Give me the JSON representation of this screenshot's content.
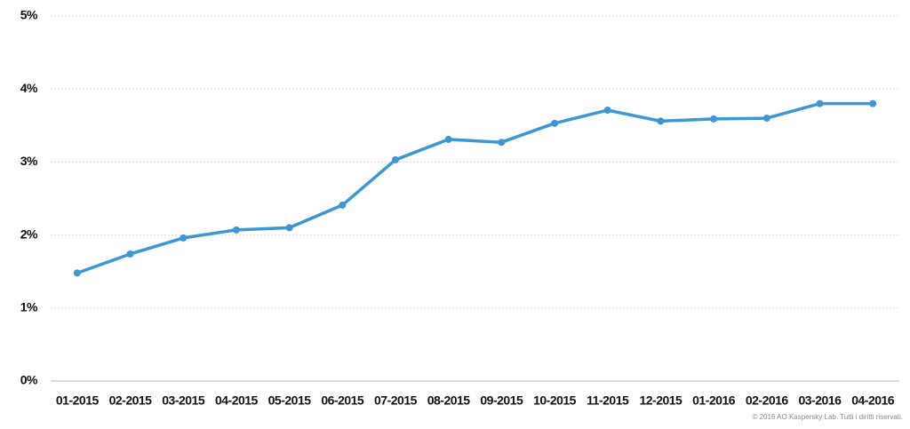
{
  "chart_data": {
    "type": "line",
    "categories": [
      "01-2015",
      "02-2015",
      "03-2015",
      "04-2015",
      "05-2015",
      "06-2015",
      "07-2015",
      "08-2015",
      "09-2015",
      "10-2015",
      "11-2015",
      "12-2015",
      "01-2016",
      "02-2016",
      "03-2016",
      "04-2016"
    ],
    "values": [
      1.48,
      1.74,
      1.96,
      2.07,
      2.1,
      2.41,
      3.03,
      3.31,
      3.27,
      3.53,
      3.71,
      3.56,
      3.59,
      3.6,
      3.8,
      3.8
    ],
    "color": "#3d97d3",
    "ylim": [
      0,
      5
    ],
    "yticks": [
      {
        "value": 0,
        "label": "0%"
      },
      {
        "value": 1,
        "label": "1%"
      },
      {
        "value": 2,
        "label": "2%"
      },
      {
        "value": 3,
        "label": "3%"
      },
      {
        "value": 4,
        "label": "4%"
      },
      {
        "value": 5,
        "label": "5%"
      }
    ],
    "grid": true,
    "copyright": "© 2016 AO Kaspersky Lab. Tutti i diritti riservati."
  }
}
